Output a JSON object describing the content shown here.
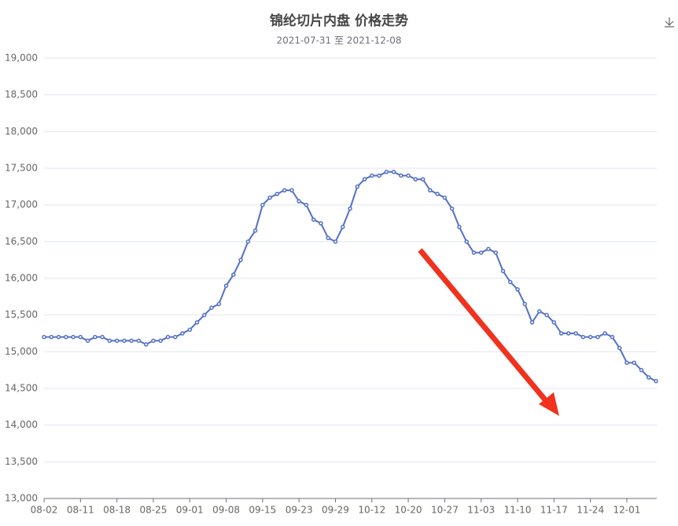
{
  "chart_data": {
    "type": "line",
    "title": "锦纶切片内盘 价格走势",
    "subtitle": "2021-07-31 至 2021-12-08",
    "categories": [
      "08-02",
      null,
      null,
      null,
      null,
      "08-11",
      null,
      null,
      null,
      null,
      "08-18",
      null,
      null,
      null,
      null,
      "08-25",
      null,
      null,
      null,
      null,
      "09-01",
      null,
      null,
      null,
      null,
      "09-08",
      null,
      null,
      null,
      null,
      "09-15",
      null,
      null,
      null,
      null,
      "09-23",
      null,
      null,
      null,
      null,
      "09-29",
      null,
      null,
      null,
      null,
      "10-12",
      null,
      null,
      null,
      null,
      "10-20",
      null,
      null,
      null,
      null,
      "10-27",
      null,
      null,
      null,
      null,
      "11-03",
      null,
      null,
      null,
      null,
      "11-10",
      null,
      null,
      null,
      null,
      "11-17",
      null,
      null,
      null,
      null,
      "11-24",
      null,
      null,
      null,
      null,
      "12-01",
      null,
      null,
      null,
      null
    ],
    "values": [
      15200,
      15200,
      15200,
      15200,
      15200,
      15200,
      15150,
      15200,
      15200,
      15150,
      15150,
      15150,
      15150,
      15150,
      15100,
      15150,
      15150,
      15200,
      15200,
      15250,
      15300,
      15400,
      15500,
      15600,
      15650,
      15900,
      16050,
      16250,
      16500,
      16650,
      17000,
      17100,
      17150,
      17200,
      17200,
      17050,
      17000,
      16800,
      16750,
      16550,
      16500,
      16700,
      16950,
      17250,
      17350,
      17400,
      17400,
      17450,
      17450,
      17400,
      17400,
      17350,
      17350,
      17200,
      17150,
      17100,
      16950,
      16700,
      16500,
      16350,
      16350,
      16400,
      16350,
      16100,
      15950,
      15850,
      15650,
      15400,
      15550,
      15500,
      15400,
      15250,
      15250,
      15250,
      15200,
      15200,
      15200,
      15250,
      15200,
      15050,
      14850,
      14850,
      14750,
      14650,
      14600
    ],
    "color": "#5470c6",
    "ylim": [
      13000,
      19000
    ],
    "yticks": [
      {
        "value": 13000,
        "label": "13,000"
      },
      {
        "value": 13500,
        "label": "13,500"
      },
      {
        "value": 14000,
        "label": "14,000"
      },
      {
        "value": 14500,
        "label": "14,500"
      },
      {
        "value": 15000,
        "label": "15,000"
      },
      {
        "value": 15500,
        "label": "15,500"
      },
      {
        "value": 16000,
        "label": "16,000"
      },
      {
        "value": 16500,
        "label": "16,500"
      },
      {
        "value": 17000,
        "label": "17,000"
      },
      {
        "value": 17500,
        "label": "17,500"
      },
      {
        "value": 18000,
        "label": "18,000"
      },
      {
        "value": 18500,
        "label": "18,500"
      },
      {
        "value": 19000,
        "label": "19,000"
      }
    ],
    "grid": true
  }
}
